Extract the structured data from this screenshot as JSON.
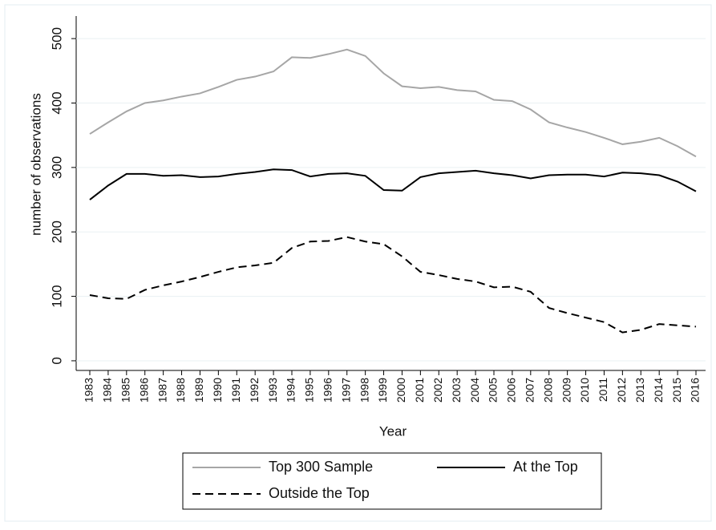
{
  "chart_data": {
    "type": "line",
    "y_label": "number of observations",
    "x_label": "Year",
    "categories": [
      "1983",
      "1984",
      "1985",
      "1986",
      "1987",
      "1988",
      "1989",
      "1990",
      "1991",
      "1992",
      "1993",
      "1994",
      "1995",
      "1996",
      "1997",
      "1998",
      "1999",
      "2000",
      "2001",
      "2002",
      "2003",
      "2004",
      "2005",
      "2006",
      "2007",
      "2008",
      "2009",
      "2010",
      "2011",
      "2012",
      "2013",
      "2014",
      "2015",
      "2016"
    ],
    "series": [
      {
        "name": "Top 300 Sample",
        "color": "#a6a6a6",
        "style": "solid",
        "values": [
          352,
          370,
          387,
          400,
          404,
          410,
          415,
          425,
          436,
          441,
          449,
          471,
          470,
          476,
          483,
          473,
          446,
          426,
          423,
          425,
          420,
          418,
          405,
          403,
          390,
          370,
          362,
          355,
          346,
          336,
          340,
          346,
          333,
          317
        ]
      },
      {
        "name": "At the Top",
        "color": "#000000",
        "style": "solid",
        "values": [
          250,
          272,
          290,
          290,
          287,
          288,
          285,
          286,
          290,
          293,
          297,
          296,
          286,
          290,
          291,
          287,
          265,
          264,
          285,
          291,
          293,
          295,
          291,
          288,
          283,
          288,
          289,
          289,
          286,
          292,
          291,
          288,
          278,
          263
        ]
      },
      {
        "name": "Outside the Top",
        "color": "#000000",
        "style": "dashed",
        "values": [
          102,
          97,
          96,
          110,
          117,
          123,
          130,
          138,
          145,
          148,
          152,
          175,
          185,
          186,
          192,
          185,
          181,
          162,
          138,
          133,
          127,
          123,
          114,
          115,
          107,
          82,
          74,
          67,
          60,
          44,
          48,
          57,
          55,
          53
        ]
      }
    ],
    "ylim": [
      -15,
      535
    ],
    "yticks": [
      0,
      100,
      200,
      300,
      400,
      500
    ],
    "grid": true,
    "legend": "bottom"
  }
}
